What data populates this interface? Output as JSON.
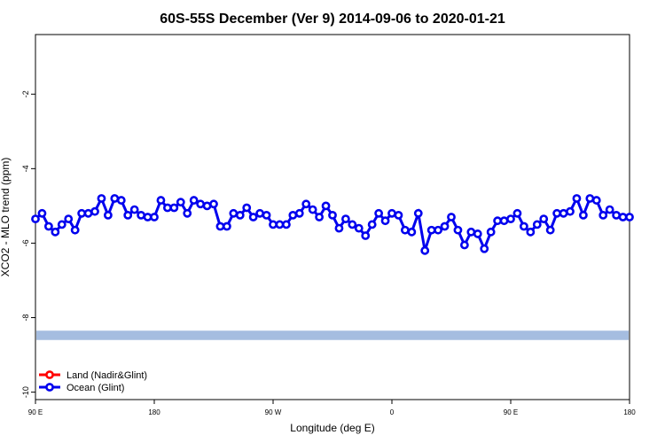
{
  "chart_data": {
    "type": "line",
    "title": "60S-55S December (Ver 9)   2014-09-06 to 2020-01-21",
    "xlabel": "Longitude (deg E)",
    "ylabel": "XCO2 - MLO trend (ppm)",
    "xlim": [
      90,
      540
    ],
    "ylim": [
      -10.2,
      -0.4
    ],
    "x_ticks": [
      {
        "value": 90,
        "label": "90 E"
      },
      {
        "value": 180,
        "label": "180"
      },
      {
        "value": 270,
        "label": "90 W"
      },
      {
        "value": 360,
        "label": "0"
      },
      {
        "value": 450,
        "label": "90 E"
      },
      {
        "value": 540,
        "label": "180"
      }
    ],
    "y_ticks": [
      {
        "value": -2,
        "label": "-2"
      },
      {
        "value": -4,
        "label": "-4"
      },
      {
        "value": -6,
        "label": "-6"
      },
      {
        "value": -8,
        "label": "-8"
      },
      {
        "value": -10,
        "label": "-10"
      }
    ],
    "grid": false,
    "legend_position": "bottom-left",
    "band": {
      "y_from": -8.6,
      "y_to": -8.35,
      "color": "#a5bde0"
    },
    "series": [
      {
        "name": "Land (Nadir&Glint)",
        "color": "#ff0000",
        "x": [],
        "y": []
      },
      {
        "name": "Ocean (Glint)",
        "color": "#0000ee",
        "x": [
          90,
          95,
          100,
          105,
          110,
          115,
          120,
          125,
          130,
          135,
          140,
          145,
          150,
          155,
          160,
          165,
          170,
          175,
          180,
          185,
          190,
          195,
          200,
          205,
          210,
          215,
          220,
          225,
          230,
          235,
          240,
          245,
          250,
          255,
          260,
          265,
          270,
          275,
          280,
          285,
          290,
          295,
          300,
          305,
          310,
          315,
          320,
          325,
          330,
          335,
          340,
          345,
          350,
          355,
          360,
          365,
          370,
          375,
          380,
          385,
          390,
          395,
          400,
          405,
          410,
          415,
          420,
          425,
          430,
          435,
          440,
          445,
          450,
          455,
          460,
          465,
          470,
          475,
          480,
          485,
          490,
          495,
          500,
          505,
          510,
          515,
          520,
          525,
          530,
          535,
          540
        ],
        "y": [
          -5.35,
          -5.2,
          -5.55,
          -5.7,
          -5.5,
          -5.35,
          -5.65,
          -5.2,
          -5.2,
          -5.15,
          -4.8,
          -5.25,
          -4.8,
          -4.85,
          -5.25,
          -5.1,
          -5.25,
          -5.3,
          -5.3,
          -4.85,
          -5.05,
          -5.05,
          -4.9,
          -5.2,
          -4.85,
          -4.95,
          -5.0,
          -4.95,
          -5.55,
          -5.55,
          -5.2,
          -5.25,
          -5.05,
          -5.3,
          -5.2,
          -5.25,
          -5.5,
          -5.5,
          -5.5,
          -5.25,
          -5.2,
          -4.95,
          -5.1,
          -5.3,
          -5.0,
          -5.25,
          -5.6,
          -5.35,
          -5.5,
          -5.6,
          -5.8,
          -5.5,
          -5.2,
          -5.4,
          -5.2,
          -5.25,
          -5.65,
          -5.7,
          -5.2,
          -6.2,
          -5.65,
          -5.65,
          -5.55,
          -5.3,
          -5.65,
          -6.05,
          -5.7,
          -5.75,
          -6.15,
          -5.7,
          -5.4,
          -5.4,
          -5.35,
          -5.2,
          -5.55,
          -5.7,
          -5.5,
          -5.35,
          -5.65,
          -5.2,
          -5.2,
          -5.15,
          -4.8,
          -5.25,
          -4.8,
          -4.85,
          -5.25,
          -5.1,
          -5.25,
          -5.3,
          -5.3
        ]
      }
    ]
  }
}
